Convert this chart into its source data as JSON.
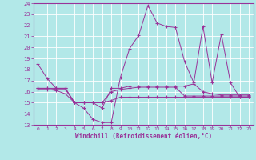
{
  "title": "Windchill (Refroidissement éolien,°C)",
  "bg_color": "#b2e8e8",
  "grid_color": "#ffffff",
  "line_color": "#993399",
  "xlim": [
    -0.5,
    23.5
  ],
  "ylim": [
    13,
    24
  ],
  "yticks": [
    13,
    14,
    15,
    16,
    17,
    18,
    19,
    20,
    21,
    22,
    23,
    24
  ],
  "xticks": [
    0,
    1,
    2,
    3,
    4,
    5,
    6,
    7,
    8,
    9,
    10,
    11,
    12,
    13,
    14,
    15,
    16,
    17,
    18,
    19,
    20,
    21,
    22,
    23
  ],
  "xtick_labels": [
    "0",
    "1",
    "2",
    "3",
    "4",
    "5",
    "6",
    "7",
    "8",
    "9",
    "10",
    "11",
    "12",
    "13",
    "14",
    "15",
    "16",
    "17",
    "18",
    "19",
    "20",
    "21",
    "22",
    "23"
  ],
  "series1": {
    "x": [
      0,
      1,
      2,
      3,
      4,
      5,
      6,
      7,
      8,
      9,
      10,
      11,
      12,
      13,
      14,
      15,
      16,
      17,
      18,
      19,
      20,
      21,
      22,
      23
    ],
    "y": [
      18.5,
      17.2,
      16.3,
      16.3,
      15.0,
      14.5,
      13.5,
      13.2,
      13.2,
      17.3,
      19.9,
      21.1,
      23.8,
      22.2,
      21.9,
      21.8,
      18.7,
      16.8,
      21.9,
      16.8,
      21.2,
      16.8,
      15.5,
      15.5
    ]
  },
  "series2": {
    "x": [
      0,
      1,
      2,
      3,
      4,
      5,
      6,
      7,
      8,
      9,
      10,
      11,
      12,
      13,
      14,
      15,
      16,
      17,
      18,
      19,
      20,
      21,
      22,
      23
    ],
    "y": [
      16.3,
      16.3,
      16.3,
      16.3,
      15.0,
      15.0,
      15.0,
      14.5,
      16.3,
      16.3,
      16.5,
      16.5,
      16.5,
      16.5,
      16.5,
      16.5,
      16.5,
      16.7,
      16.0,
      15.8,
      15.7,
      15.7,
      15.7,
      15.7
    ]
  },
  "series3": {
    "x": [
      0,
      1,
      2,
      3,
      4,
      5,
      6,
      7,
      8,
      9,
      10,
      11,
      12,
      13,
      14,
      15,
      16,
      17,
      18,
      19,
      20,
      21,
      22,
      23
    ],
    "y": [
      16.3,
      16.3,
      16.2,
      16.2,
      15.0,
      15.0,
      15.0,
      15.0,
      16.0,
      16.2,
      16.3,
      16.4,
      16.4,
      16.4,
      16.4,
      16.4,
      15.6,
      15.6,
      15.6,
      15.6,
      15.6,
      15.6,
      15.6,
      15.6
    ]
  },
  "series4": {
    "x": [
      0,
      1,
      2,
      3,
      4,
      5,
      6,
      7,
      8,
      9,
      10,
      11,
      12,
      13,
      14,
      15,
      16,
      17,
      18,
      19,
      20,
      21,
      22,
      23
    ],
    "y": [
      16.2,
      16.2,
      16.1,
      15.8,
      15.0,
      15.0,
      15.0,
      15.0,
      15.2,
      15.5,
      15.5,
      15.5,
      15.5,
      15.5,
      15.5,
      15.5,
      15.5,
      15.5,
      15.5,
      15.5,
      15.5,
      15.5,
      15.5,
      15.5
    ]
  }
}
